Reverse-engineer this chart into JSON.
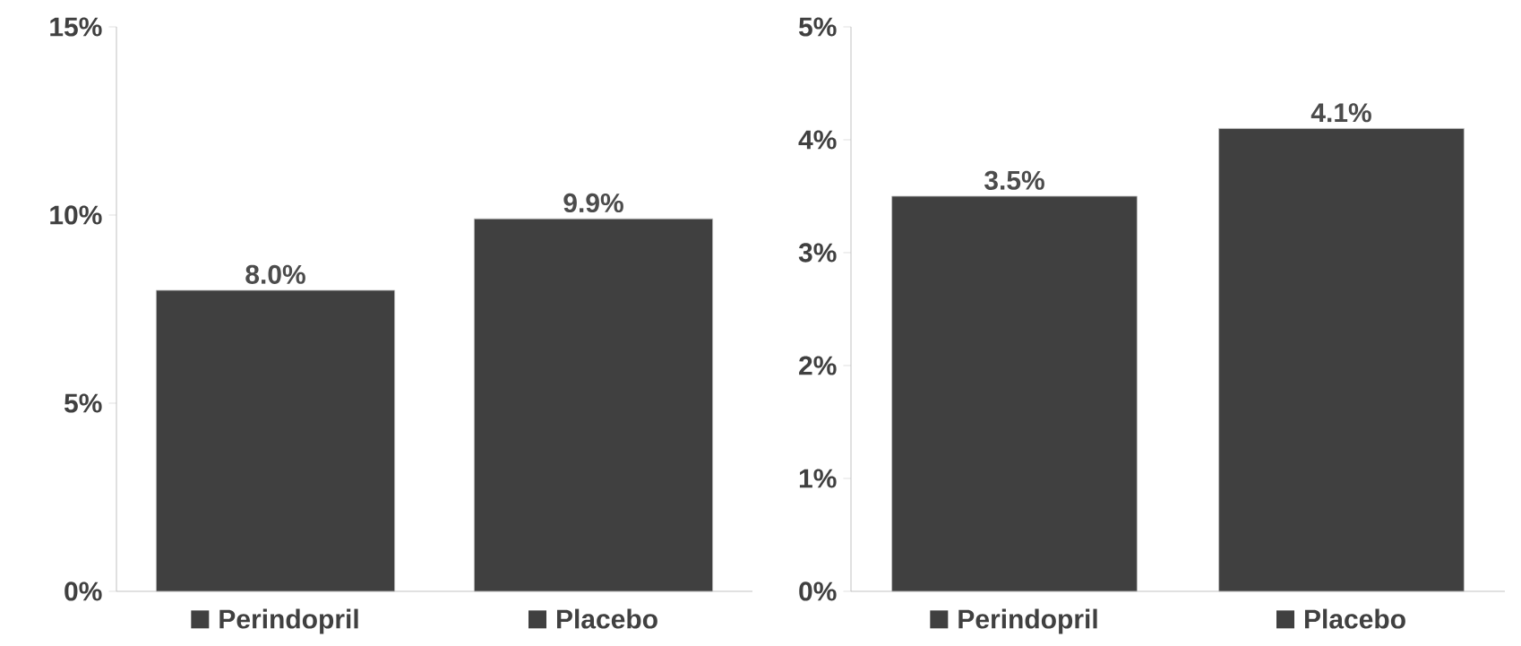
{
  "chart_data": [
    {
      "type": "bar",
      "categories": [
        "Perindopril",
        "Placebo"
      ],
      "values": [
        8.0,
        9.9
      ],
      "color": "#404040",
      "value_labels": [
        "8.0%",
        "9.9%"
      ],
      "ylim": [
        0,
        15
      ],
      "yticks": [
        {
          "value": 0,
          "label": "0%"
        },
        {
          "value": 5,
          "label": "5%"
        },
        {
          "value": 10,
          "label": "10%"
        },
        {
          "value": 15,
          "label": "15%"
        }
      ]
    },
    {
      "type": "bar",
      "categories": [
        "Perindopril",
        "Placebo"
      ],
      "values": [
        3.5,
        4.1
      ],
      "color": "#404040",
      "value_labels": [
        "3.5%",
        "4.1%"
      ],
      "ylim": [
        0,
        5
      ],
      "yticks": [
        {
          "value": 0,
          "label": "0%"
        },
        {
          "value": 1,
          "label": "1%"
        },
        {
          "value": 2,
          "label": "2%"
        },
        {
          "value": 3,
          "label": "3%"
        },
        {
          "value": 4,
          "label": "4%"
        },
        {
          "value": 5,
          "label": "5%"
        }
      ]
    }
  ]
}
